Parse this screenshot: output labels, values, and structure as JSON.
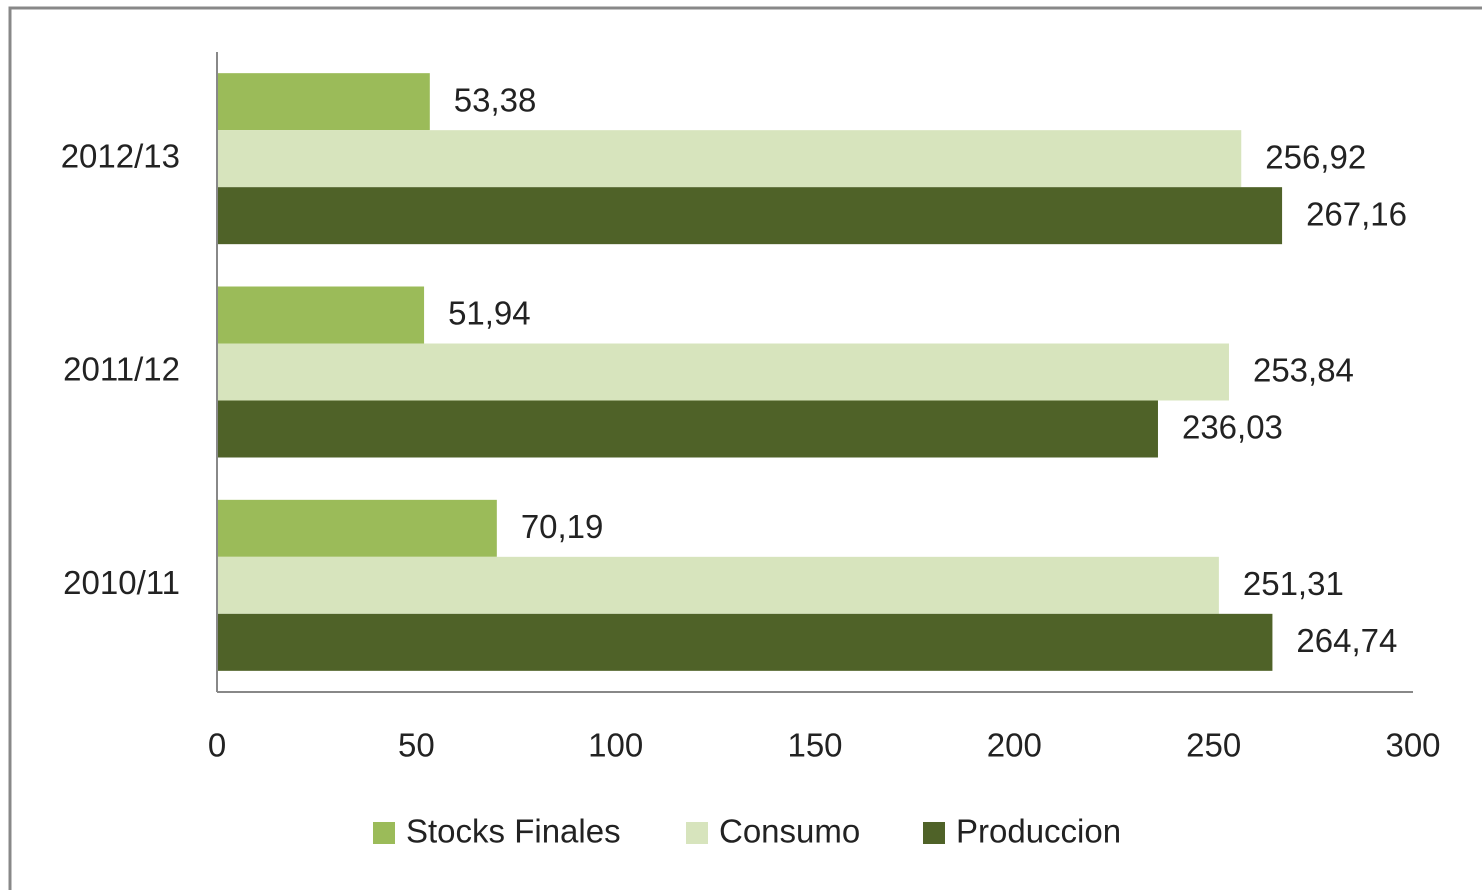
{
  "chart_data": {
    "type": "bar",
    "orientation": "horizontal",
    "categories": [
      "2010/11",
      "2011/12",
      "2012/13"
    ],
    "series": [
      {
        "name": "Stocks Finales",
        "color": "#9bbb59",
        "values": [
          70.19,
          51.94,
          53.38
        ],
        "value_labels": [
          "70,19",
          "51,94",
          "53,38"
        ]
      },
      {
        "name": "Consumo",
        "color": "#d7e4bd",
        "values": [
          251.31,
          253.84,
          256.92
        ],
        "value_labels": [
          "251,31",
          "253,84",
          "256,92"
        ]
      },
      {
        "name": "Produccion",
        "color": "#4f6228",
        "values": [
          264.74,
          236.03,
          267.16
        ],
        "value_labels": [
          "264,74",
          "236,03",
          "267,16"
        ]
      }
    ],
    "xlim": [
      0,
      300
    ],
    "xticks": [
      0,
      50,
      100,
      150,
      200,
      250,
      300
    ],
    "grid": false,
    "legend": "bottom"
  }
}
